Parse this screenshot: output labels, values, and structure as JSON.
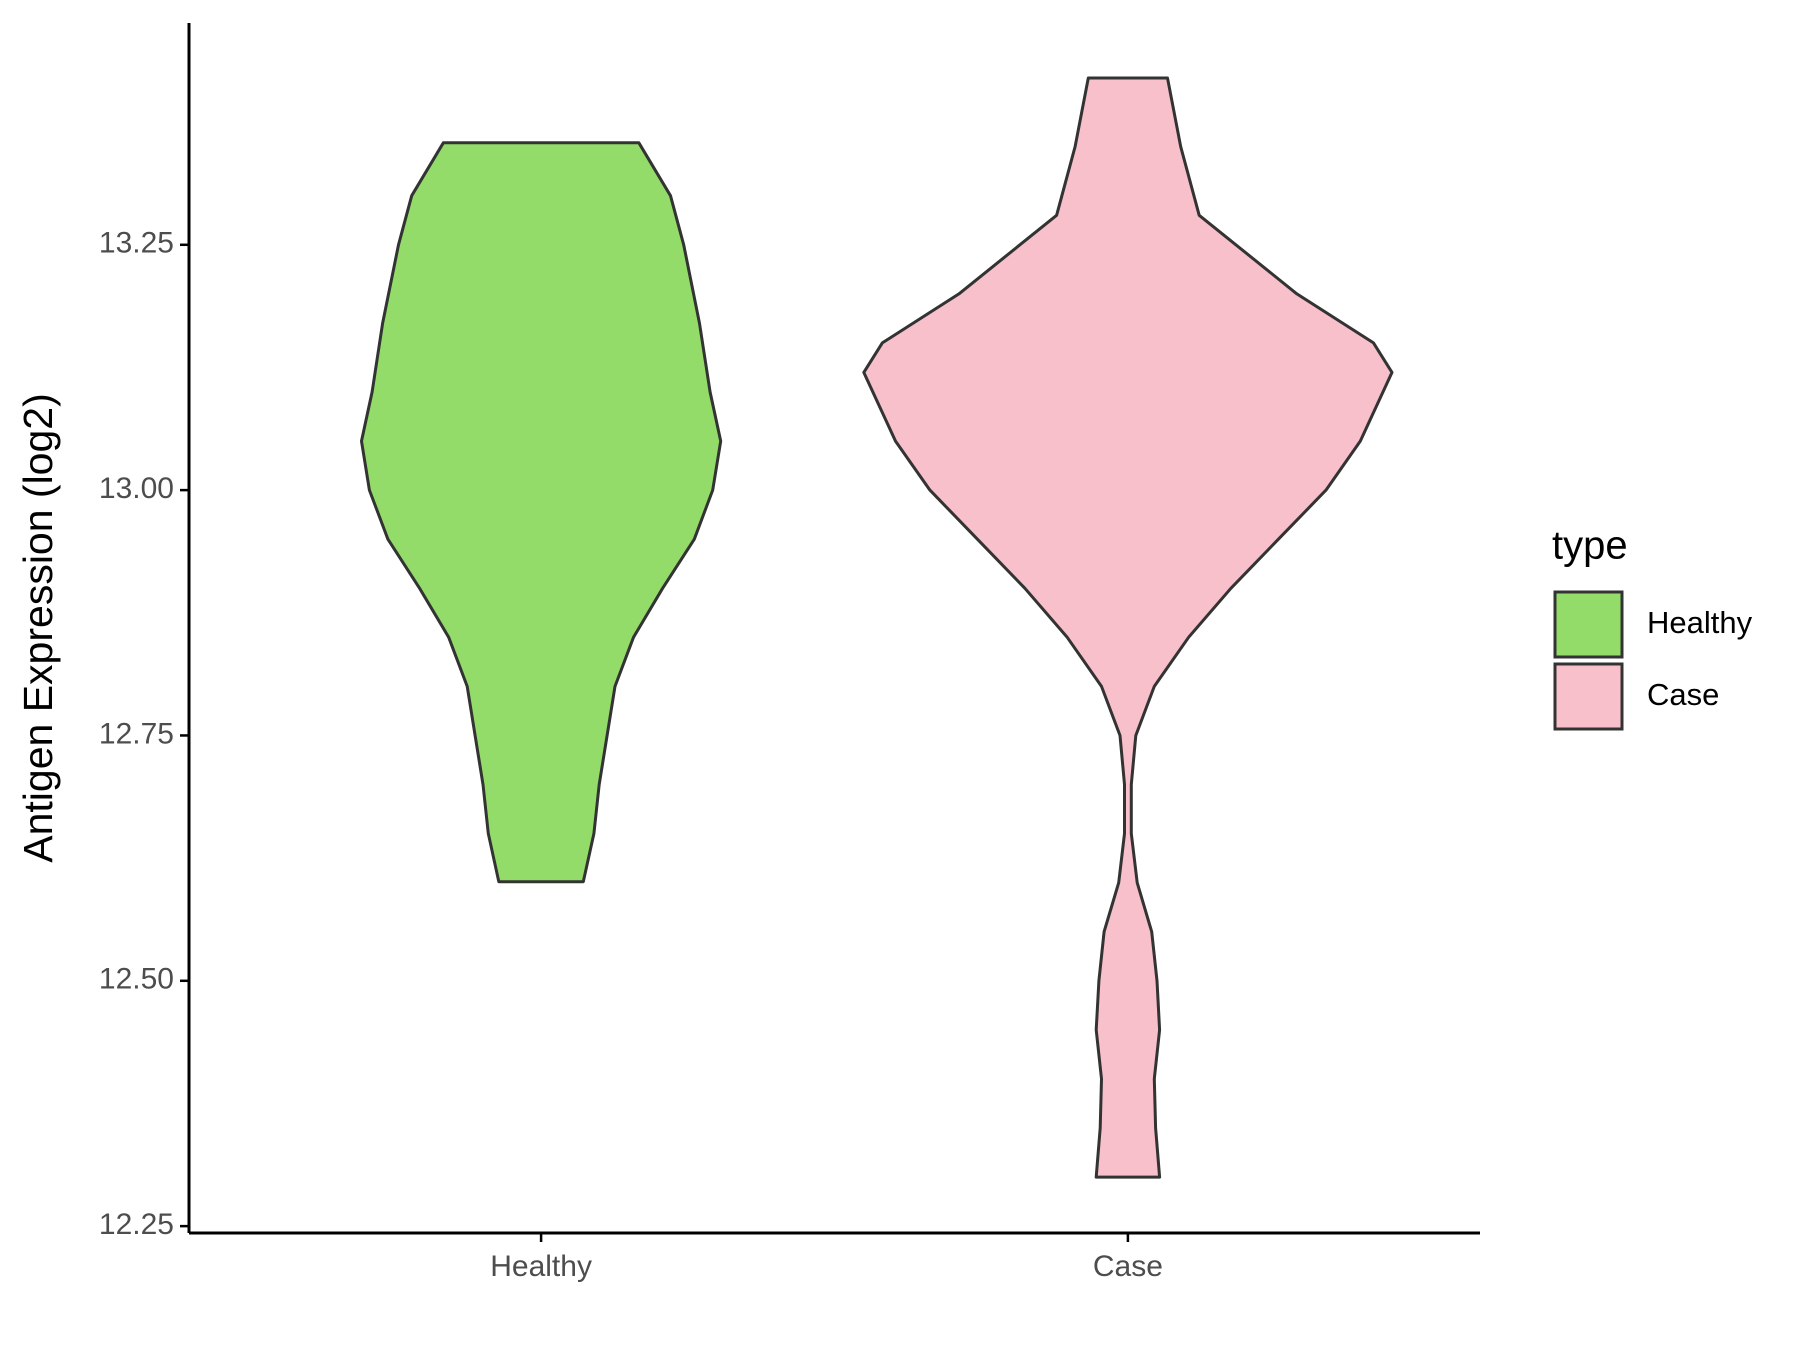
{
  "chart_data": {
    "type": "violin",
    "y_label": "Antigen Expression (log2)",
    "categories": [
      "Healthy",
      "Case"
    ],
    "legend_title": "type",
    "series": [
      {
        "name": "Healthy",
        "color": "#93dc6a",
        "y": [
          12.601,
          12.65,
          12.7,
          12.75,
          12.8,
          12.85,
          12.9,
          12.95,
          13.0,
          13.05,
          13.1,
          13.17,
          13.25,
          13.3,
          13.354
        ],
        "density": [
          0.16,
          0.2,
          0.22,
          0.25,
          0.28,
          0.35,
          0.46,
          0.58,
          0.65,
          0.68,
          0.64,
          0.6,
          0.54,
          0.49,
          0.37
        ]
      },
      {
        "name": "Case",
        "color": "#f7c0cb",
        "y": [
          12.3,
          12.35,
          12.4,
          12.45,
          12.5,
          12.55,
          12.6,
          12.65,
          12.7,
          12.75,
          12.8,
          12.85,
          12.9,
          12.95,
          13.0,
          13.05,
          13.12,
          13.15,
          13.2,
          13.28,
          13.35,
          13.42
        ],
        "density": [
          0.12,
          0.105,
          0.1,
          0.12,
          0.11,
          0.09,
          0.035,
          0.013,
          0.013,
          0.03,
          0.1,
          0.23,
          0.39,
          0.57,
          0.75,
          0.88,
          1.0,
          0.93,
          0.64,
          0.27,
          0.2,
          0.15
        ]
      }
    ],
    "ylim": [
      12.243,
      13.476
    ],
    "yticks": [
      12.25,
      {
        "value": 12.5,
        "label": "12.50"
      },
      12.75,
      {
        "value": 13,
        "label": "13.00"
      },
      13.25
    ],
    "grid": false
  }
}
